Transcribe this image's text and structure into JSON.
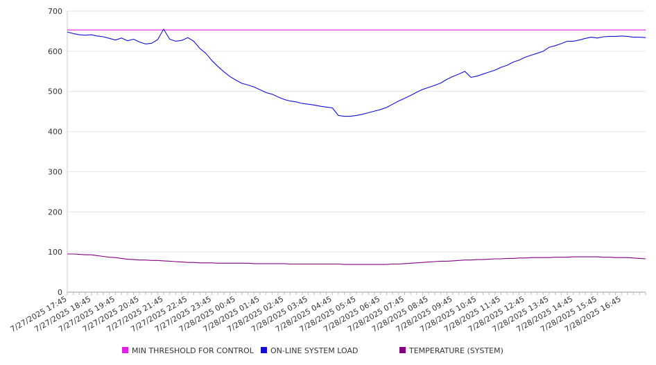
{
  "chart_data": {
    "type": "line",
    "title": "",
    "xlabel": "",
    "ylabel": "",
    "ylim": [
      0,
      700
    ],
    "yticks": [
      0,
      100,
      200,
      300,
      400,
      500,
      600,
      700
    ],
    "grid": true,
    "legend_position": "bottom",
    "x_start": "7/27/2025 17:45",
    "x_step_minutes": 15,
    "x_end": "7/28/2025 17:45",
    "x_tick_labels": [
      "7/27/2025 17:45",
      "7/27/2025 18:45",
      "7/27/2025 19:45",
      "7/27/2025 20:45",
      "7/27/2025 21:45",
      "7/27/2025 22:45",
      "7/27/2025 23:45",
      "7/28/2025 00:45",
      "7/28/2025 01:45",
      "7/28/2025 02:45",
      "7/28/2025 03:45",
      "7/28/2025 04:45",
      "7/28/2025 05:45",
      "7/28/2025 06:45",
      "7/28/2025 07:45",
      "7/28/2025 08:45",
      "7/28/2025 09:45",
      "7/28/2025 10:45",
      "7/28/2025 11:45",
      "7/28/2025 12:45",
      "7/28/2025 13:45",
      "7/28/2025 14:45",
      "7/28/2025 15:45",
      "7/28/2025 16:45"
    ],
    "series": [
      {
        "name": "MIN THRESHOLD FOR CONTROL",
        "color": "#e020e0",
        "values": [
          653,
          653,
          653,
          653,
          653,
          653,
          653,
          653,
          653,
          653,
          653,
          653,
          653,
          653,
          653,
          653,
          653,
          653,
          653,
          653,
          653,
          653,
          653,
          653,
          653,
          653,
          653,
          653,
          653,
          653,
          653,
          653,
          653,
          653,
          653,
          653,
          653,
          653,
          653,
          653,
          653,
          653,
          653,
          653,
          653,
          653,
          653,
          653,
          653,
          653,
          653,
          653,
          653,
          653,
          653,
          653,
          653,
          653,
          653,
          653,
          653,
          653,
          653,
          653,
          653,
          653,
          653,
          653,
          653,
          653,
          653,
          653,
          653,
          653,
          653,
          653,
          653,
          653,
          653,
          653,
          653,
          653,
          653,
          653,
          653,
          653,
          653,
          653,
          653,
          653,
          653,
          653,
          653,
          653,
          653,
          653,
          653
        ]
      },
      {
        "name": "ON-LINE SYSTEM LOAD",
        "color": "#1010d0",
        "values": [
          648,
          644,
          641,
          640,
          641,
          638,
          636,
          632,
          628,
          633,
          626,
          630,
          623,
          618,
          620,
          629,
          655,
          630,
          625,
          627,
          634,
          625,
          607,
          595,
          577,
          562,
          549,
          537,
          528,
          520,
          516,
          511,
          504,
          497,
          493,
          486,
          480,
          476,
          474,
          470,
          468,
          466,
          463,
          461,
          459,
          440,
          438,
          438,
          440,
          443,
          447,
          451,
          455,
          460,
          468,
          476,
          483,
          490,
          498,
          505,
          510,
          515,
          521,
          530,
          537,
          543,
          550,
          535,
          538,
          543,
          548,
          553,
          560,
          565,
          573,
          578,
          585,
          590,
          595,
          600,
          610,
          614,
          619,
          625,
          625,
          628,
          632,
          635,
          633,
          636,
          637,
          637,
          638,
          637,
          635,
          635,
          634
        ]
      },
      {
        "name": "TEMPERATURE (SYSTEM)",
        "color": "#800080",
        "values": [
          95,
          95,
          94,
          93,
          93,
          91,
          89,
          87,
          86,
          84,
          82,
          81,
          80,
          80,
          79,
          79,
          78,
          77,
          76,
          75,
          74,
          74,
          73,
          73,
          73,
          72,
          72,
          72,
          72,
          72,
          72,
          71,
          71,
          71,
          71,
          71,
          71,
          70,
          70,
          70,
          70,
          70,
          70,
          70,
          70,
          70,
          69,
          69,
          69,
          69,
          69,
          69,
          69,
          69,
          70,
          70,
          71,
          72,
          73,
          74,
          75,
          76,
          77,
          77,
          78,
          79,
          80,
          80,
          81,
          81,
          82,
          83,
          83,
          84,
          84,
          85,
          85,
          86,
          86,
          86,
          86,
          87,
          87,
          87,
          88,
          88,
          88,
          88,
          88,
          87,
          87,
          86,
          86,
          86,
          85,
          84,
          83
        ]
      }
    ]
  }
}
